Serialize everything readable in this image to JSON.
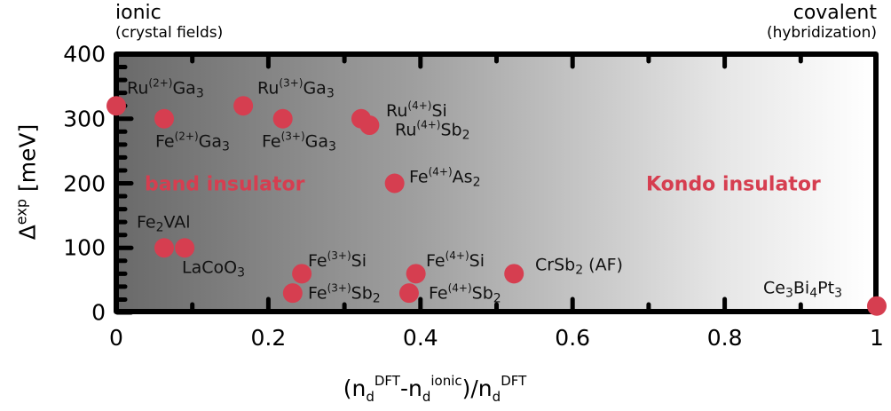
{
  "chart_data": {
    "type": "scatter",
    "xlabel": {
      "open": "(n",
      "sub1": "d",
      "sup1": "DFT",
      "dash": "-n",
      "sub2": "d",
      "sup2": "ionic",
      "close": ")/n",
      "sub3": "d",
      "sup3": "DFT"
    },
    "ylabel": {
      "base": "Δ",
      "sup": "exp",
      "unit": " [meV]"
    },
    "xlim": [
      0,
      1
    ],
    "ylim": [
      0,
      400
    ],
    "xticks": [
      "0",
      "0.2",
      "0.4",
      "0.6",
      "0.8",
      "1"
    ],
    "yticks": [
      "0",
      "100",
      "200",
      "300",
      "400"
    ],
    "corner_left": {
      "title": "ionic",
      "subtitle": "(crystal fields)"
    },
    "corner_right": {
      "title": "covalent",
      "subtitle": "(hybridization)"
    },
    "regions": [
      "band insulator",
      "Kondo insulator"
    ],
    "marker_color": "#d63e50",
    "points": [
      {
        "x": 0.0,
        "y": 320,
        "label": [
          {
            "t": "Ru"
          },
          {
            "sup": "(2+)"
          },
          {
            "t": "Ga"
          },
          {
            "sub": "3"
          }
        ]
      },
      {
        "x": 0.063,
        "y": 300,
        "label": [
          {
            "t": "Fe"
          },
          {
            "sup": "(2+)"
          },
          {
            "t": "Ga"
          },
          {
            "sub": "3"
          }
        ]
      },
      {
        "x": 0.167,
        "y": 320,
        "label": [
          {
            "t": "Ru"
          },
          {
            "sup": "(3+)"
          },
          {
            "t": "Ga"
          },
          {
            "sub": "3"
          }
        ]
      },
      {
        "x": 0.219,
        "y": 300,
        "label": [
          {
            "t": "Fe"
          },
          {
            "sup": "(3+)"
          },
          {
            "t": "Ga"
          },
          {
            "sub": "3"
          }
        ]
      },
      {
        "x": 0.322,
        "y": 300,
        "label": [
          {
            "t": "Ru"
          },
          {
            "sup": "(4+)"
          },
          {
            "t": "Si"
          }
        ]
      },
      {
        "x": 0.333,
        "y": 290,
        "label": [
          {
            "t": "Ru"
          },
          {
            "sup": "(4+)"
          },
          {
            "t": "Sb"
          },
          {
            "sub": "2"
          }
        ]
      },
      {
        "x": 0.366,
        "y": 200,
        "label": [
          {
            "t": "Fe"
          },
          {
            "sup": "(4+)"
          },
          {
            "t": "As"
          },
          {
            "sub": "2"
          }
        ]
      },
      {
        "x": 0.063,
        "y": 100,
        "label": [
          {
            "t": "Fe"
          },
          {
            "sub": "2"
          },
          {
            "t": "VAl"
          }
        ]
      },
      {
        "x": 0.09,
        "y": 100,
        "label": [
          {
            "t": "LaCoO"
          },
          {
            "sub": "3"
          }
        ]
      },
      {
        "x": 0.244,
        "y": 60,
        "label": [
          {
            "t": "Fe"
          },
          {
            "sup": "(3+)"
          },
          {
            "t": "Si"
          }
        ]
      },
      {
        "x": 0.232,
        "y": 30,
        "label": [
          {
            "t": "Fe"
          },
          {
            "sup": "(3+)"
          },
          {
            "t": "Sb"
          },
          {
            "sub": "2"
          }
        ]
      },
      {
        "x": 0.394,
        "y": 60,
        "label": [
          {
            "t": "Fe"
          },
          {
            "sup": "(4+)"
          },
          {
            "t": "Si"
          }
        ]
      },
      {
        "x": 0.385,
        "y": 30,
        "label": [
          {
            "t": "Fe"
          },
          {
            "sup": "(4+)"
          },
          {
            "t": "Sb"
          },
          {
            "sub": "2"
          }
        ]
      },
      {
        "x": 0.523,
        "y": 60,
        "label": [
          {
            "t": "CrSb"
          },
          {
            "sub": "2"
          },
          {
            "t": " (AF)"
          }
        ]
      },
      {
        "x": 1.0,
        "y": 10,
        "label": [
          {
            "t": "Ce"
          },
          {
            "sub": "3"
          },
          {
            "t": "Bi"
          },
          {
            "sub": "4"
          },
          {
            "t": "Pt"
          },
          {
            "sub": "3"
          }
        ]
      }
    ]
  }
}
